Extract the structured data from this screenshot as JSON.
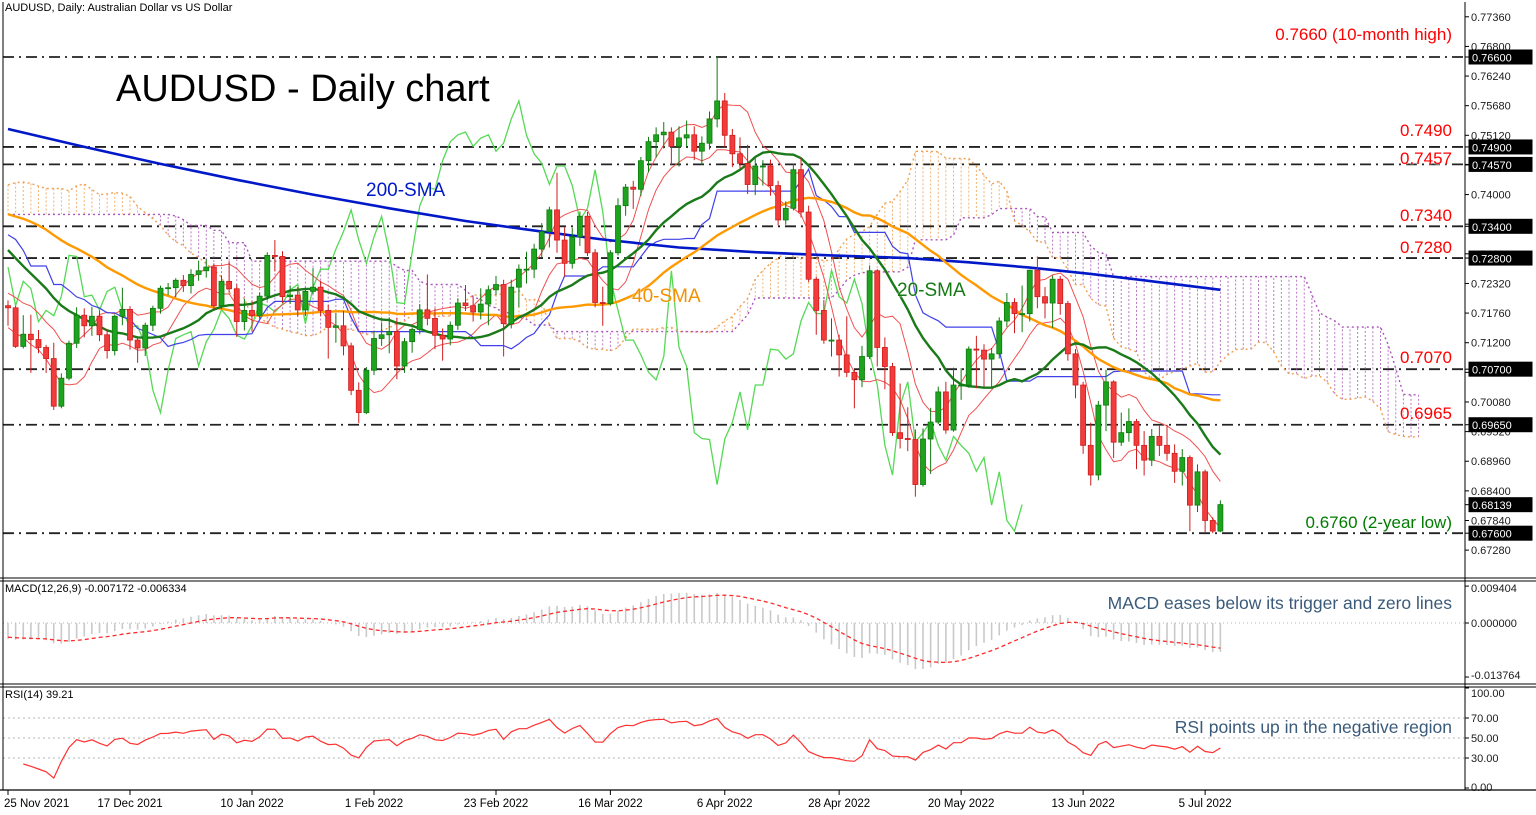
{
  "window": {
    "symbol_label": "AUDUSD, Daily:  Australian Dollar vs US Dollar"
  },
  "chart_data": {
    "type": "candlestick",
    "title": "AUDUSD - Daily chart",
    "instrument": "AUDUSD",
    "timeframe": "Daily",
    "x_axis": {
      "labels": [
        {
          "text": "25 Nov 2021",
          "bar": 0
        },
        {
          "text": "17 Dec 2021",
          "bar": 16
        },
        {
          "text": "10 Jan 2022",
          "bar": 32
        },
        {
          "text": "1 Feb 2022",
          "bar": 48
        },
        {
          "text": "23 Feb 2022",
          "bar": 64
        },
        {
          "text": "16 Mar 2022",
          "bar": 79
        },
        {
          "text": "6 Apr 2022",
          "bar": 94
        },
        {
          "text": "28 Apr 2022",
          "bar": 109
        },
        {
          "text": "20 May 2022",
          "bar": 125
        },
        {
          "text": "13 Jun 2022",
          "bar": 141
        },
        {
          "text": "5 Jul 2022",
          "bar": 157
        }
      ]
    },
    "y_axis_main": {
      "top_tick": 0.7736,
      "bottom_tick": 0.6728,
      "tick_step": 0.0056,
      "tick_count": 19,
      "decimals": 5
    },
    "levels": [
      {
        "price": 0.766,
        "label": "0.7660 (10-month high)",
        "axis_label": "0.76600",
        "color": "#ff0000"
      },
      {
        "price": 0.749,
        "label": "0.7490",
        "axis_label": "0.74900",
        "color": "#ff0000"
      },
      {
        "price": 0.7457,
        "label": "0.7457",
        "axis_label": "0.74570",
        "color": "#ff0000"
      },
      {
        "price": 0.734,
        "label": "0.7340",
        "axis_label": "0.73400",
        "color": "#ff0000"
      },
      {
        "price": 0.728,
        "label": "0.7280",
        "axis_label": "0.72800",
        "color": "#ff0000"
      },
      {
        "price": 0.707,
        "label": "0.7070",
        "axis_label": "0.70700",
        "color": "#ff0000"
      },
      {
        "price": 0.6965,
        "label": "0.6965",
        "axis_label": "0.69650",
        "color": "#ff0000"
      },
      {
        "price": 0.676,
        "label": "0.6760 (2-year low)",
        "axis_label": "0.67600",
        "color": "#007c00"
      }
    ],
    "current_price": {
      "value": 0.68139,
      "axis_label": "0.68139"
    },
    "overlays": {
      "sma200": {
        "label": "200-SMA",
        "color": "#0018c8"
      },
      "sma40": {
        "label": "40-SMA",
        "color": "#ff9900",
        "period": 40
      },
      "sma20": {
        "label": "20-SMA",
        "color": "#1a7a1a",
        "period": 20
      },
      "ichimoku": {
        "span_a_color": "#f0a050",
        "span_b_color": "#aa55bb",
        "kijun_color": "#4040e8",
        "chikou_color": "#55d955",
        "shift": 26
      },
      "hl_channel": {
        "color": "#f05050",
        "period": 5
      }
    },
    "sma200_points": [
      [
        0,
        0.7524
      ],
      [
        10,
        0.749
      ],
      [
        20,
        0.7458
      ],
      [
        30,
        0.7428
      ],
      [
        40,
        0.74
      ],
      [
        50,
        0.7374
      ],
      [
        60,
        0.735
      ],
      [
        70,
        0.733
      ],
      [
        78,
        0.7315
      ],
      [
        88,
        0.73
      ],
      [
        98,
        0.7291
      ],
      [
        108,
        0.7285
      ],
      [
        118,
        0.728
      ],
      [
        126,
        0.7272
      ],
      [
        134,
        0.7262
      ],
      [
        142,
        0.725
      ],
      [
        150,
        0.7236
      ],
      [
        159,
        0.722
      ]
    ],
    "prehistory_hl": [
      [
        0.7372,
        0.7301
      ],
      [
        0.7336,
        0.7264
      ],
      [
        0.7324,
        0.7275
      ],
      [
        0.7318,
        0.7255
      ],
      [
        0.7288,
        0.7236
      ],
      [
        0.7284,
        0.722
      ],
      [
        0.727,
        0.7218
      ],
      [
        0.7285,
        0.7226
      ],
      [
        0.7246,
        0.717
      ],
      [
        0.7232,
        0.7172
      ],
      [
        0.727,
        0.7225
      ],
      [
        0.7294,
        0.7248
      ],
      [
        0.7323,
        0.7262
      ],
      [
        0.7317,
        0.7257
      ],
      [
        0.734,
        0.7281
      ],
      [
        0.7375,
        0.7324
      ],
      [
        0.7413,
        0.7359
      ],
      [
        0.7439,
        0.7379
      ],
      [
        0.744,
        0.7394
      ],
      [
        0.747,
        0.741
      ],
      [
        0.7485,
        0.743
      ],
      [
        0.7475,
        0.7415
      ],
      [
        0.75,
        0.7438
      ],
      [
        0.7525,
        0.746
      ],
      [
        0.7536,
        0.748
      ],
      [
        0.7555,
        0.749
      ],
      [
        0.7535,
        0.7452
      ],
      [
        0.7505,
        0.744
      ],
      [
        0.752,
        0.7448
      ],
      [
        0.748,
        0.7404
      ],
      [
        0.7448,
        0.7384
      ],
      [
        0.7432,
        0.7366
      ],
      [
        0.744,
        0.738
      ],
      [
        0.7455,
        0.7388
      ],
      [
        0.7467,
        0.741
      ],
      [
        0.7445,
        0.737
      ],
      [
        0.742,
        0.7357
      ],
      [
        0.741,
        0.7346
      ],
      [
        0.7388,
        0.732
      ],
      [
        0.7378,
        0.7303
      ],
      [
        0.7356,
        0.7296
      ],
      [
        0.736,
        0.7294
      ],
      [
        0.7344,
        0.7282
      ],
      [
        0.7336,
        0.7255
      ],
      [
        0.7301,
        0.7244
      ],
      [
        0.729,
        0.7226
      ],
      [
        0.7278,
        0.7212
      ],
      [
        0.7265,
        0.718
      ],
      [
        0.7232,
        0.7164
      ],
      [
        0.7224,
        0.715
      ],
      [
        0.72,
        0.7128
      ],
      [
        0.7212,
        0.7149
      ]
    ],
    "candles": [
      [
        0.719,
        0.72,
        0.7152,
        0.7186
      ],
      [
        0.7186,
        0.719,
        0.711,
        0.7113
      ],
      [
        0.7113,
        0.7172,
        0.7109,
        0.7136
      ],
      [
        0.7136,
        0.7173,
        0.7063,
        0.7126
      ],
      [
        0.7126,
        0.7144,
        0.71,
        0.7111
      ],
      [
        0.7111,
        0.7116,
        0.7063,
        0.709
      ],
      [
        0.709,
        0.712,
        0.6993,
        0.7
      ],
      [
        0.7,
        0.7062,
        0.6996,
        0.7053
      ],
      [
        0.7053,
        0.7124,
        0.7049,
        0.7119
      ],
      [
        0.7119,
        0.7187,
        0.711,
        0.7172
      ],
      [
        0.7172,
        0.7185,
        0.713,
        0.7152
      ],
      [
        0.7152,
        0.7188,
        0.7133,
        0.717
      ],
      [
        0.717,
        0.7181,
        0.7123,
        0.7135
      ],
      [
        0.7135,
        0.7146,
        0.709,
        0.7105
      ],
      [
        0.7105,
        0.7173,
        0.7096,
        0.717
      ],
      [
        0.717,
        0.7224,
        0.7153,
        0.7183
      ],
      [
        0.7183,
        0.7189,
        0.7107,
        0.7125
      ],
      [
        0.7125,
        0.7128,
        0.7082,
        0.711
      ],
      [
        0.711,
        0.7158,
        0.7095,
        0.7153
      ],
      [
        0.7153,
        0.719,
        0.7142,
        0.7185
      ],
      [
        0.7185,
        0.7228,
        0.7175,
        0.7223
      ],
      [
        0.7223,
        0.7233,
        0.721,
        0.7224
      ],
      [
        0.7224,
        0.7242,
        0.7206,
        0.7238
      ],
      [
        0.7238,
        0.7248,
        0.7216,
        0.7228
      ],
      [
        0.7228,
        0.7259,
        0.7213,
        0.7249
      ],
      [
        0.7249,
        0.7275,
        0.7237,
        0.7256
      ],
      [
        0.7256,
        0.7278,
        0.7243,
        0.7263
      ],
      [
        0.7263,
        0.727,
        0.7182,
        0.719
      ],
      [
        0.719,
        0.7247,
        0.7184,
        0.7236
      ],
      [
        0.7236,
        0.7274,
        0.7215,
        0.7222
      ],
      [
        0.7222,
        0.723,
        0.7131,
        0.716
      ],
      [
        0.716,
        0.7203,
        0.7143,
        0.7181
      ],
      [
        0.7181,
        0.7199,
        0.7141,
        0.7171
      ],
      [
        0.7171,
        0.7215,
        0.7166,
        0.7208
      ],
      [
        0.7208,
        0.7291,
        0.72,
        0.7285
      ],
      [
        0.7285,
        0.7314,
        0.7255,
        0.7283
      ],
      [
        0.7283,
        0.7293,
        0.7195,
        0.7207
      ],
      [
        0.7207,
        0.7228,
        0.7193,
        0.721
      ],
      [
        0.721,
        0.7225,
        0.717,
        0.7182
      ],
      [
        0.7182,
        0.7224,
        0.717,
        0.7217
      ],
      [
        0.7217,
        0.7261,
        0.7212,
        0.7225
      ],
      [
        0.7225,
        0.7237,
        0.717,
        0.7181
      ],
      [
        0.7181,
        0.7192,
        0.709,
        0.7149
      ],
      [
        0.7149,
        0.7176,
        0.712,
        0.7152
      ],
      [
        0.7152,
        0.718,
        0.7096,
        0.7114
      ],
      [
        0.7114,
        0.712,
        0.7021,
        0.703
      ],
      [
        0.703,
        0.7045,
        0.6968,
        0.6988
      ],
      [
        0.6988,
        0.7074,
        0.6985,
        0.7068
      ],
      [
        0.7068,
        0.7142,
        0.7059,
        0.7128
      ],
      [
        0.7128,
        0.7158,
        0.7114,
        0.7135
      ],
      [
        0.7135,
        0.7168,
        0.71,
        0.7141
      ],
      [
        0.7141,
        0.7167,
        0.7051,
        0.7076
      ],
      [
        0.7076,
        0.7129,
        0.7063,
        0.7122
      ],
      [
        0.7122,
        0.7149,
        0.7101,
        0.7145
      ],
      [
        0.7145,
        0.7193,
        0.7136,
        0.7182
      ],
      [
        0.7182,
        0.7249,
        0.7153,
        0.7166
      ],
      [
        0.7166,
        0.7185,
        0.7108,
        0.7134
      ],
      [
        0.7134,
        0.7147,
        0.7086,
        0.7127
      ],
      [
        0.7127,
        0.716,
        0.7115,
        0.7153
      ],
      [
        0.7153,
        0.7204,
        0.7144,
        0.7195
      ],
      [
        0.7195,
        0.7229,
        0.718,
        0.719
      ],
      [
        0.719,
        0.7207,
        0.716,
        0.7178
      ],
      [
        0.7178,
        0.7223,
        0.7164,
        0.7193
      ],
      [
        0.7193,
        0.7228,
        0.7153,
        0.722
      ],
      [
        0.722,
        0.7246,
        0.721,
        0.723
      ],
      [
        0.723,
        0.7239,
        0.7094,
        0.7156
      ],
      [
        0.7156,
        0.7239,
        0.7147,
        0.7225
      ],
      [
        0.7225,
        0.7268,
        0.7187,
        0.7259
      ],
      [
        0.7259,
        0.7292,
        0.7232,
        0.7259
      ],
      [
        0.7259,
        0.7307,
        0.7242,
        0.7297
      ],
      [
        0.7297,
        0.7346,
        0.7281,
        0.733
      ],
      [
        0.733,
        0.7377,
        0.73,
        0.7371
      ],
      [
        0.7371,
        0.7441,
        0.729,
        0.7314
      ],
      [
        0.7314,
        0.7338,
        0.7245,
        0.727
      ],
      [
        0.727,
        0.7337,
        0.726,
        0.732
      ],
      [
        0.732,
        0.7368,
        0.7303,
        0.7359
      ],
      [
        0.7359,
        0.7367,
        0.7284,
        0.729
      ],
      [
        0.729,
        0.7297,
        0.7187,
        0.7196
      ],
      [
        0.7196,
        0.7226,
        0.7152,
        0.7194
      ],
      [
        0.7194,
        0.7295,
        0.719,
        0.729
      ],
      [
        0.729,
        0.7393,
        0.7285,
        0.7379
      ],
      [
        0.7379,
        0.742,
        0.736,
        0.7414
      ],
      [
        0.7414,
        0.7426,
        0.7373,
        0.741
      ],
      [
        0.741,
        0.7471,
        0.7397,
        0.7464
      ],
      [
        0.7464,
        0.7509,
        0.7442,
        0.75
      ],
      [
        0.75,
        0.7527,
        0.747,
        0.7513
      ],
      [
        0.7513,
        0.7537,
        0.7487,
        0.7518
      ],
      [
        0.7518,
        0.7527,
        0.7455,
        0.7491
      ],
      [
        0.7491,
        0.7529,
        0.7453,
        0.7507
      ],
      [
        0.7507,
        0.754,
        0.749,
        0.7513
      ],
      [
        0.7513,
        0.7529,
        0.7465,
        0.7482
      ],
      [
        0.7482,
        0.751,
        0.7456,
        0.7497
      ],
      [
        0.7497,
        0.7557,
        0.7485,
        0.7543
      ],
      [
        0.7543,
        0.7661,
        0.7527,
        0.7577
      ],
      [
        0.7577,
        0.7592,
        0.749,
        0.7512
      ],
      [
        0.7512,
        0.7524,
        0.7452,
        0.7477
      ],
      [
        0.7477,
        0.7508,
        0.7449,
        0.7459
      ],
      [
        0.7459,
        0.7494,
        0.7401,
        0.7419
      ],
      [
        0.7419,
        0.7469,
        0.7399,
        0.7454
      ],
      [
        0.7454,
        0.7465,
        0.7417,
        0.7454
      ],
      [
        0.7454,
        0.7466,
        0.7398,
        0.7417
      ],
      [
        0.7417,
        0.7426,
        0.7342,
        0.7352
      ],
      [
        0.7352,
        0.7387,
        0.7343,
        0.7374
      ],
      [
        0.7374,
        0.7458,
        0.737,
        0.7447
      ],
      [
        0.7447,
        0.747,
        0.7357,
        0.7367
      ],
      [
        0.7367,
        0.7379,
        0.7235,
        0.724
      ],
      [
        0.724,
        0.7245,
        0.7135,
        0.7181
      ],
      [
        0.7181,
        0.7201,
        0.7118,
        0.7125
      ],
      [
        0.7125,
        0.7166,
        0.7094,
        0.7125
      ],
      [
        0.7125,
        0.7135,
        0.7056,
        0.7097
      ],
      [
        0.7097,
        0.717,
        0.7055,
        0.7064
      ],
      [
        0.7064,
        0.7069,
        0.6996,
        0.705
      ],
      [
        0.705,
        0.7114,
        0.7036,
        0.7094
      ],
      [
        0.7094,
        0.7266,
        0.7089,
        0.7256
      ],
      [
        0.7256,
        0.7259,
        0.7075,
        0.7111
      ],
      [
        0.7111,
        0.713,
        0.7032,
        0.7075
      ],
      [
        0.7075,
        0.7082,
        0.6944,
        0.695
      ],
      [
        0.695,
        0.7043,
        0.692,
        0.6939
      ],
      [
        0.6939,
        0.6998,
        0.6915,
        0.6937
      ],
      [
        0.6937,
        0.6956,
        0.6829,
        0.6852
      ],
      [
        0.6852,
        0.6958,
        0.6848,
        0.6938
      ],
      [
        0.6938,
        0.6997,
        0.6872,
        0.697
      ],
      [
        0.697,
        0.7037,
        0.6966,
        0.7027
      ],
      [
        0.7027,
        0.7046,
        0.6948,
        0.6955
      ],
      [
        0.6955,
        0.7073,
        0.6952,
        0.704
      ],
      [
        0.704,
        0.7072,
        0.7012,
        0.704
      ],
      [
        0.704,
        0.7113,
        0.7035,
        0.7108
      ],
      [
        0.7108,
        0.7133,
        0.7034,
        0.7106
      ],
      [
        0.7106,
        0.7117,
        0.7037,
        0.7089
      ],
      [
        0.7089,
        0.711,
        0.7036,
        0.7099
      ],
      [
        0.7099,
        0.7168,
        0.709,
        0.7161
      ],
      [
        0.7161,
        0.7214,
        0.715,
        0.7196
      ],
      [
        0.7196,
        0.7204,
        0.7138,
        0.7175
      ],
      [
        0.7175,
        0.7228,
        0.714,
        0.7175
      ],
      [
        0.7175,
        0.7258,
        0.716,
        0.7257
      ],
      [
        0.7257,
        0.7283,
        0.7185,
        0.7207
      ],
      [
        0.7207,
        0.7225,
        0.7166,
        0.7195
      ],
      [
        0.7195,
        0.7247,
        0.7148,
        0.724
      ],
      [
        0.724,
        0.7246,
        0.7173,
        0.7194
      ],
      [
        0.7194,
        0.7199,
        0.7086,
        0.7099
      ],
      [
        0.7099,
        0.7108,
        0.7015,
        0.704
      ],
      [
        0.704,
        0.7046,
        0.691,
        0.6926
      ],
      [
        0.6926,
        0.6969,
        0.685,
        0.687
      ],
      [
        0.687,
        0.701,
        0.686,
        0.7002
      ],
      [
        0.7002,
        0.7069,
        0.6953,
        0.7046
      ],
      [
        0.7046,
        0.7049,
        0.6902,
        0.6932
      ],
      [
        0.6932,
        0.6988,
        0.6925,
        0.695
      ],
      [
        0.695,
        0.6996,
        0.6933,
        0.6971
      ],
      [
        0.6971,
        0.6976,
        0.6881,
        0.6926
      ],
      [
        0.6926,
        0.6953,
        0.6869,
        0.6898
      ],
      [
        0.6898,
        0.6957,
        0.6887,
        0.6943
      ],
      [
        0.6943,
        0.6963,
        0.6906,
        0.6926
      ],
      [
        0.6926,
        0.6965,
        0.6897,
        0.6911
      ],
      [
        0.6911,
        0.6928,
        0.6855,
        0.6877
      ],
      [
        0.6877,
        0.6919,
        0.685,
        0.6903
      ],
      [
        0.6903,
        0.6907,
        0.6764,
        0.6813
      ],
      [
        0.6813,
        0.689,
        0.68,
        0.6876
      ],
      [
        0.6876,
        0.688,
        0.6762,
        0.6784
      ],
      [
        0.6784,
        0.679,
        0.676,
        0.6764
      ],
      [
        0.6764,
        0.6822,
        0.6762,
        0.6814
      ]
    ],
    "candle_colors": {
      "up_fill": "#1ea31e",
      "up_stroke": "#0e7a0e",
      "down_fill": "#f23b3b",
      "down_stroke": "#cf1d1d"
    },
    "macd": {
      "label": "MACD(12,26,9) -0.007172 -0.006334",
      "params": [
        12,
        26,
        9
      ],
      "macd_value": -0.007172,
      "signal_value": -0.006334,
      "axis_ticks": [
        "0.009404",
        "0.000000",
        "-0.013764"
      ],
      "axis_max": 0.009404,
      "axis_min": -0.013764,
      "annotation": "MACD eases below its trigger and zero lines",
      "histogram_color": "#c9c9c9",
      "signal_color": "#ff2a2a"
    },
    "rsi": {
      "label": "RSI(14) 39.21",
      "period": 14,
      "value": 39.21,
      "axis_ticks": [
        100,
        70,
        50,
        30,
        0
      ],
      "guide_levels": [
        70,
        50,
        30
      ],
      "annotation": "RSI points up in the negative region",
      "line_color": "#ff3030"
    }
  }
}
